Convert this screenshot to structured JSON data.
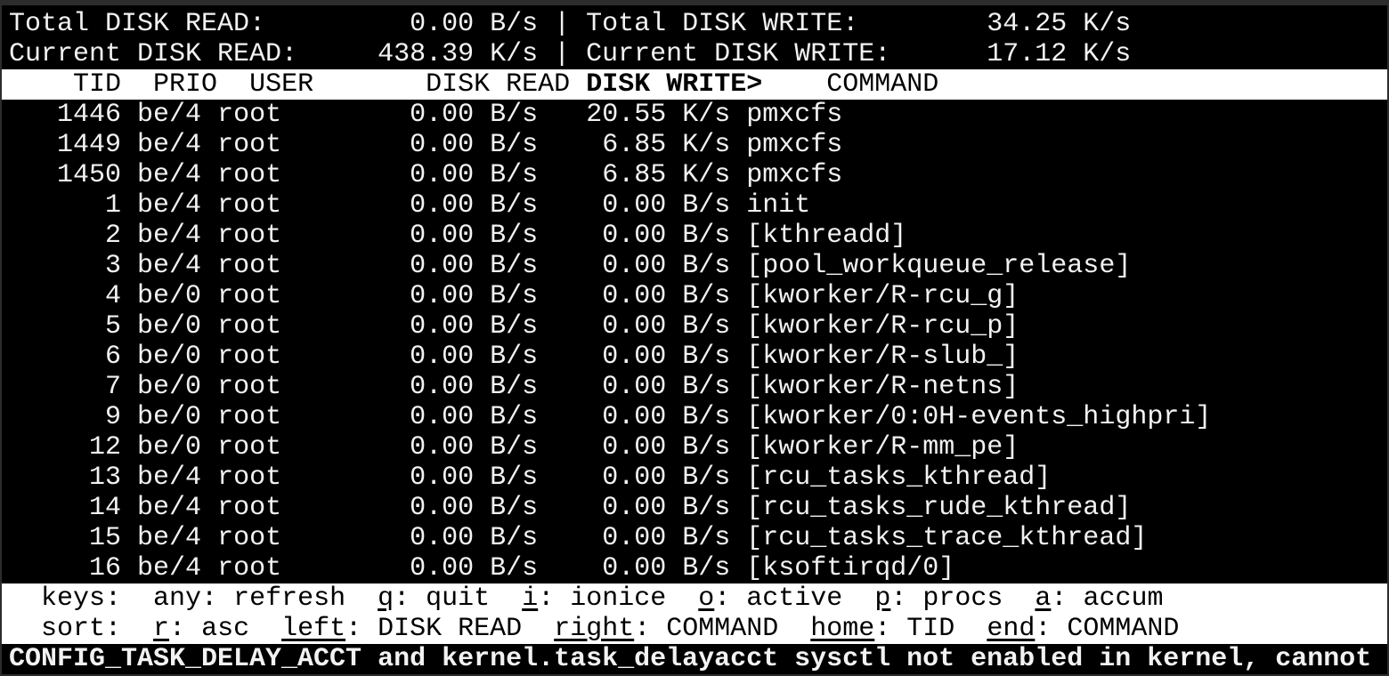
{
  "summary": {
    "total_read_label": "Total DISK READ:",
    "total_read_value": "0.00 B/s",
    "total_write_label": "Total DISK WRITE:",
    "total_write_value": "34.25 K/s",
    "current_read_label": "Current DISK READ:",
    "current_read_value": "438.39 K/s",
    "current_write_label": "Current DISK WRITE:",
    "current_write_value": "17.12 K/s",
    "separator": "|"
  },
  "columns": {
    "tid": "TID",
    "prio": "PRIO",
    "user": "USER",
    "disk_read": "DISK READ",
    "disk_write": "DISK WRITE>",
    "command": "COMMAND"
  },
  "sort_column": "disk_write",
  "rows": [
    {
      "tid": "1446",
      "prio": "be/4",
      "user": "root",
      "read": "0.00 B/s",
      "write": "20.55 K/s",
      "command": "pmxcfs"
    },
    {
      "tid": "1449",
      "prio": "be/4",
      "user": "root",
      "read": "0.00 B/s",
      "write": "6.85 K/s",
      "command": "pmxcfs"
    },
    {
      "tid": "1450",
      "prio": "be/4",
      "user": "root",
      "read": "0.00 B/s",
      "write": "6.85 K/s",
      "command": "pmxcfs"
    },
    {
      "tid": "1",
      "prio": "be/4",
      "user": "root",
      "read": "0.00 B/s",
      "write": "0.00 B/s",
      "command": "init"
    },
    {
      "tid": "2",
      "prio": "be/4",
      "user": "root",
      "read": "0.00 B/s",
      "write": "0.00 B/s",
      "command": "[kthreadd]"
    },
    {
      "tid": "3",
      "prio": "be/4",
      "user": "root",
      "read": "0.00 B/s",
      "write": "0.00 B/s",
      "command": "[pool_workqueue_release]"
    },
    {
      "tid": "4",
      "prio": "be/0",
      "user": "root",
      "read": "0.00 B/s",
      "write": "0.00 B/s",
      "command": "[kworker/R-rcu_g]"
    },
    {
      "tid": "5",
      "prio": "be/0",
      "user": "root",
      "read": "0.00 B/s",
      "write": "0.00 B/s",
      "command": "[kworker/R-rcu_p]"
    },
    {
      "tid": "6",
      "prio": "be/0",
      "user": "root",
      "read": "0.00 B/s",
      "write": "0.00 B/s",
      "command": "[kworker/R-slub_]"
    },
    {
      "tid": "7",
      "prio": "be/0",
      "user": "root",
      "read": "0.00 B/s",
      "write": "0.00 B/s",
      "command": "[kworker/R-netns]"
    },
    {
      "tid": "9",
      "prio": "be/0",
      "user": "root",
      "read": "0.00 B/s",
      "write": "0.00 B/s",
      "command": "[kworker/0:0H-events_highpri]"
    },
    {
      "tid": "12",
      "prio": "be/0",
      "user": "root",
      "read": "0.00 B/s",
      "write": "0.00 B/s",
      "command": "[kworker/R-mm_pe]"
    },
    {
      "tid": "13",
      "prio": "be/4",
      "user": "root",
      "read": "0.00 B/s",
      "write": "0.00 B/s",
      "command": "[rcu_tasks_kthread]"
    },
    {
      "tid": "14",
      "prio": "be/4",
      "user": "root",
      "read": "0.00 B/s",
      "write": "0.00 B/s",
      "command": "[rcu_tasks_rude_kthread]"
    },
    {
      "tid": "15",
      "prio": "be/4",
      "user": "root",
      "read": "0.00 B/s",
      "write": "0.00 B/s",
      "command": "[rcu_tasks_trace_kthread]"
    },
    {
      "tid": "16",
      "prio": "be/4",
      "user": "root",
      "read": "0.00 B/s",
      "write": "0.00 B/s",
      "command": "[ksoftirqd/0]"
    }
  ],
  "keys": {
    "label": "keys:",
    "items": [
      {
        "key": "any",
        "label": "refresh",
        "underline": false
      },
      {
        "key": "q",
        "label": "quit",
        "underline": true
      },
      {
        "key": "i",
        "label": "ionice",
        "underline": true
      },
      {
        "key": "o",
        "label": "active",
        "underline": true
      },
      {
        "key": "p",
        "label": "procs",
        "underline": true
      },
      {
        "key": "a",
        "label": "accum",
        "underline": true
      }
    ]
  },
  "sort": {
    "label": "sort:",
    "items": [
      {
        "key": "r",
        "label": "asc",
        "underline": true
      },
      {
        "key": "left",
        "label": "DISK READ",
        "underline": true
      },
      {
        "key": "right",
        "label": "COMMAND",
        "underline": true
      },
      {
        "key": "home",
        "label": "TID",
        "underline": true
      },
      {
        "key": "end",
        "label": "COMMAND",
        "underline": true
      }
    ]
  },
  "status_message": "CONFIG_TASK_DELAY_ACCT and kernel.task_delayacct sysctl not enabled in kernel, cannot",
  "colors": {
    "background": "#000000",
    "foreground": "#f2f2f2",
    "header_bg": "#ffffff",
    "header_fg": "#000000"
  }
}
